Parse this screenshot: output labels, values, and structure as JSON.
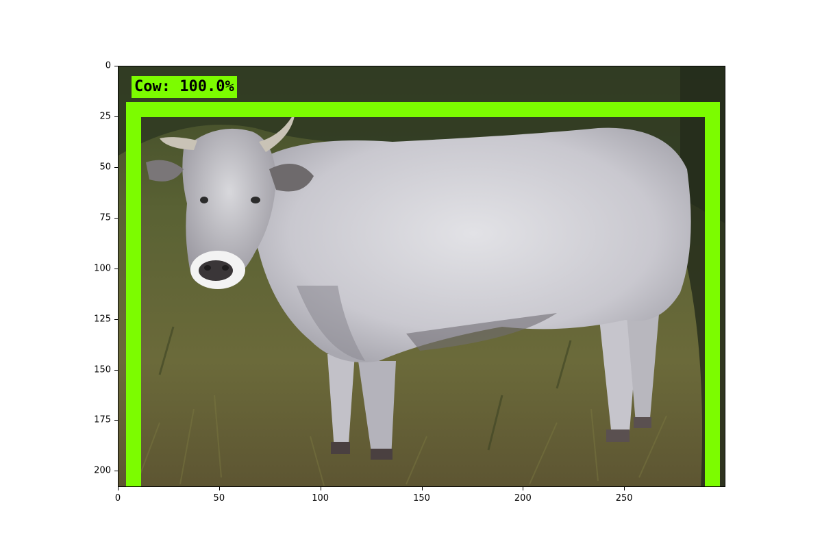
{
  "detection": {
    "label": "Cow: 100.0%",
    "box_color": "#7cfc00"
  },
  "axes": {
    "xticks": [
      "0",
      "50",
      "100",
      "150",
      "200",
      "250"
    ],
    "yticks": [
      "0",
      "25",
      "50",
      "75",
      "100",
      "125",
      "150",
      "175",
      "200"
    ]
  },
  "scene": {
    "subject": "white-grey cow standing in grass",
    "background_color": "#4f5a2e"
  }
}
